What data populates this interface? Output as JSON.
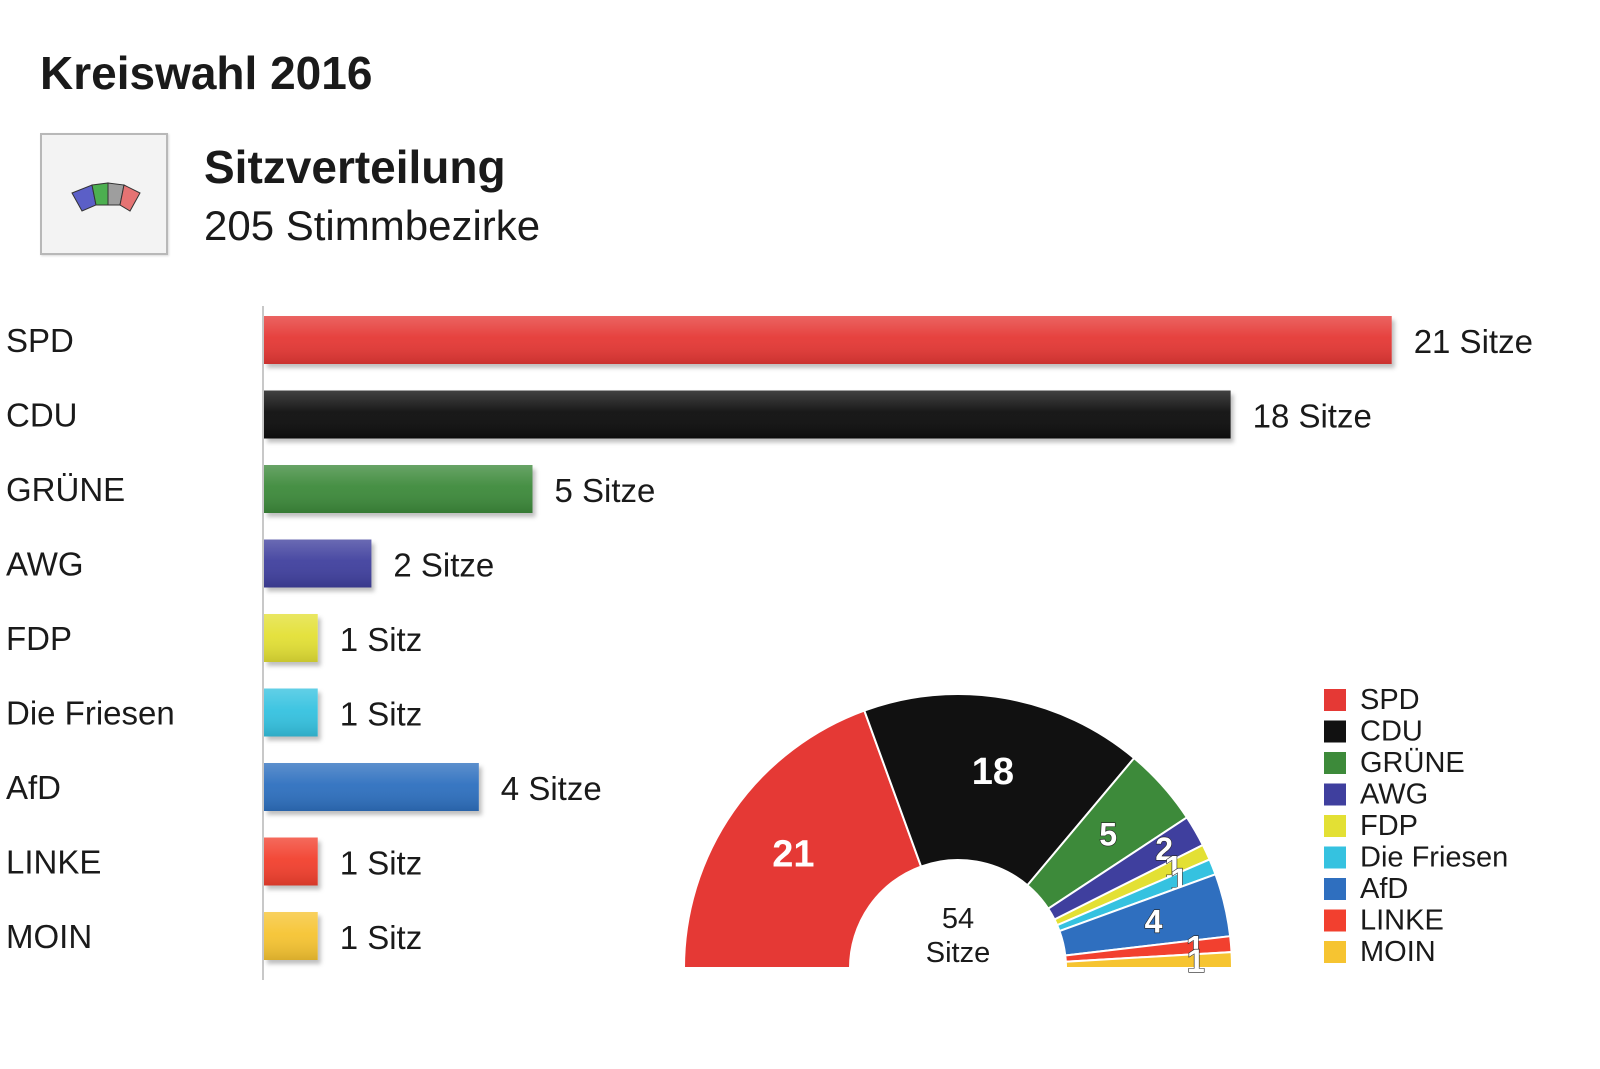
{
  "header": {
    "title": "Kreiswahl 2016",
    "subtitle": "Sitzverteilung",
    "subline": "205 Stimmbezirke"
  },
  "icon": "parliament-seats-icon",
  "chart_data": {
    "type": "bar",
    "orientation": "horizontal",
    "categories": [
      "SPD",
      "CDU",
      "GRÜNE",
      "AWG",
      "FDP",
      "Die Friesen",
      "AfD",
      "LINKE",
      "MOIN"
    ],
    "values": [
      21,
      18,
      5,
      2,
      1,
      1,
      4,
      1,
      1
    ],
    "value_labels": [
      "21 Sitze",
      "18 Sitze",
      "5 Sitze",
      "2 Sitze",
      "1 Sitz",
      "1 Sitz",
      "4 Sitze",
      "1 Sitz",
      "1 Sitz"
    ],
    "colors": [
      "#e53935",
      "#111111",
      "#3d8a3a",
      "#3f3f9e",
      "#e3e034",
      "#35c2e0",
      "#2f6fbf",
      "#f2402f",
      "#f6c431"
    ],
    "grid": false,
    "semicircle": {
      "type": "pie",
      "total_label_number": "54",
      "total_label_unit": "Sitze",
      "slice_labels": [
        "21",
        "18",
        "5",
        "2",
        "1",
        "1",
        "4",
        "1",
        "1"
      ],
      "legend_position": "right"
    }
  }
}
